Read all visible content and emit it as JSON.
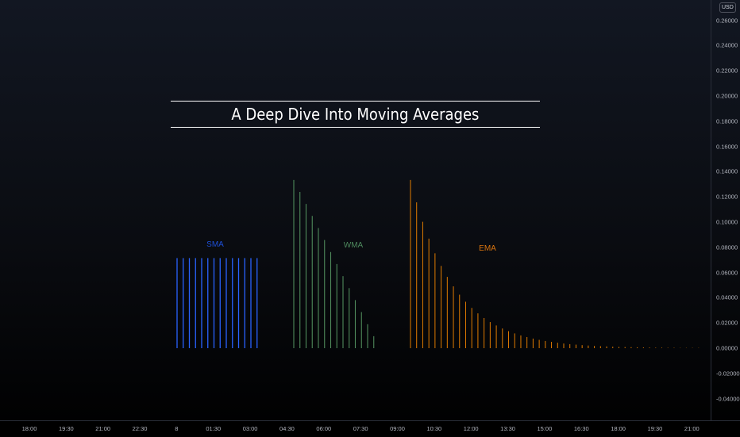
{
  "chart_data": {
    "type": "bar",
    "title": "A Deep Dive Into Moving Averages",
    "currency": "USD",
    "ylim": [
      -0.045,
      0.275
    ],
    "grid": false,
    "price_ticks": [
      "0.26000",
      "0.24000",
      "0.22000",
      "0.20000",
      "0.18000",
      "0.16000",
      "0.14000",
      "0.12000",
      "0.10000",
      "0.08000",
      "0.06000",
      "0.04000",
      "0.02000",
      "0.00000",
      "-0.02000",
      "-0.04000"
    ],
    "time_ticks": [
      "18:00",
      "19:30",
      "21:00",
      "22:30",
      "8",
      "01:30",
      "03:00",
      "04:30",
      "06:00",
      "07:30",
      "09:00",
      "10:30",
      "12:00",
      "13:30",
      "15:00",
      "16:30",
      "18:00",
      "19:30",
      "21:00"
    ],
    "series": [
      {
        "name": "SMA",
        "color": "#2962ff",
        "label_color": "#1e4fd6",
        "values": [
          0.0714,
          0.0714,
          0.0714,
          0.0714,
          0.0714,
          0.0714,
          0.0714,
          0.0714,
          0.0714,
          0.0714,
          0.0714,
          0.0714,
          0.0714,
          0.0714
        ]
      },
      {
        "name": "WMA",
        "color": "#4f8a5b",
        "label_color": "#4e8a5e",
        "values": [
          0.1333,
          0.1238,
          0.1143,
          0.1048,
          0.0952,
          0.0857,
          0.0762,
          0.0667,
          0.0571,
          0.0476,
          0.0381,
          0.0286,
          0.019,
          0.0095
        ]
      },
      {
        "name": "EMA",
        "color": "#e07b00",
        "label_color": "#d9740f",
        "values": [
          0.1333,
          0.1156,
          0.1002,
          0.0868,
          0.0752,
          0.0652,
          0.0565,
          0.049,
          0.0424,
          0.0368,
          0.0319,
          0.0276,
          0.0239,
          0.0207,
          0.018,
          0.0156,
          0.0135,
          0.0117,
          0.0101,
          0.0088,
          0.0076,
          0.0066,
          0.0057,
          0.005,
          0.0043,
          0.0037,
          0.0032,
          0.0028,
          0.0024,
          0.0021,
          0.0018,
          0.0016,
          0.0014,
          0.0012,
          0.001,
          0.0009,
          0.0008,
          0.0007,
          0.0006,
          0.0005,
          0.0004,
          0.0004,
          0.0003,
          0.0003,
          0.0002,
          0.0002,
          0.0002,
          0.0002
        ]
      }
    ]
  }
}
